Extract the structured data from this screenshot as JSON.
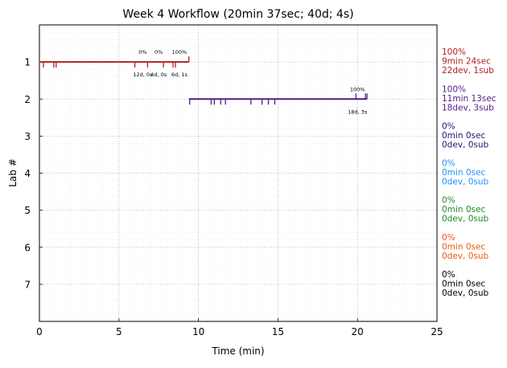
{
  "chart_data": {
    "type": "timeline",
    "title": "Week 4 Workflow (20min 37sec; 40d; 4s)",
    "xlabel": "Time (min)",
    "ylabel": "Lab #",
    "xlim": [
      0,
      25
    ],
    "ylim": [
      8,
      0
    ],
    "x_ticks": [
      0,
      5,
      10,
      15,
      20,
      25
    ],
    "y_ticks": [
      1,
      2,
      3,
      4,
      5,
      6,
      7
    ],
    "grid": true,
    "labs": [
      {
        "lab": 1,
        "color": "#b22222",
        "start": 0.0,
        "end": 9.4,
        "dev_ticks": [
          0.25,
          0.9,
          1.05,
          6.0,
          6.8,
          7.8,
          8.4,
          8.55
        ],
        "sub_ticks": [
          9.4
        ],
        "markers": [
          {
            "x": 6.5,
            "label": "0%",
            "sublabel": "12d, 0s"
          },
          {
            "x": 7.5,
            "label": "0%",
            "sublabel": "4d, 0s"
          },
          {
            "x": 8.8,
            "label": "100%",
            "sublabel": "6d, 1s"
          }
        ],
        "summary": [
          "100%",
          "9min 24sec",
          "22dev, 1sub"
        ]
      },
      {
        "lab": 2,
        "color": "#551a8b",
        "start": 9.4,
        "end": 20.6,
        "dev_ticks": [
          9.45,
          10.8,
          11.0,
          11.4,
          11.7,
          13.3,
          14.0,
          14.4,
          14.8
        ],
        "sub_ticks": [
          19.9,
          20.5,
          20.6
        ],
        "markers": [
          {
            "x": 20.0,
            "label": "100%",
            "sublabel": "18d, 3s"
          }
        ],
        "summary": [
          "100%",
          "11min 13sec",
          "18dev, 3sub"
        ]
      },
      {
        "lab": 3,
        "color": "#191970",
        "summary": [
          "0%",
          "0min 0sec",
          "0dev, 0sub"
        ]
      },
      {
        "lab": 4,
        "color": "#1e90ff",
        "summary": [
          "0%",
          "0min 0sec",
          "0dev, 0sub"
        ]
      },
      {
        "lab": 5,
        "color": "#228b22",
        "summary": [
          "0%",
          "0min 0sec",
          "0dev, 0sub"
        ]
      },
      {
        "lab": 6,
        "color": "#e8590c",
        "summary": [
          "0%",
          "0min 0sec",
          "0dev, 0sub"
        ]
      },
      {
        "lab": 7,
        "color": "#000000",
        "summary": [
          "0%",
          "0min 0sec",
          "0dev, 0sub"
        ]
      }
    ]
  }
}
